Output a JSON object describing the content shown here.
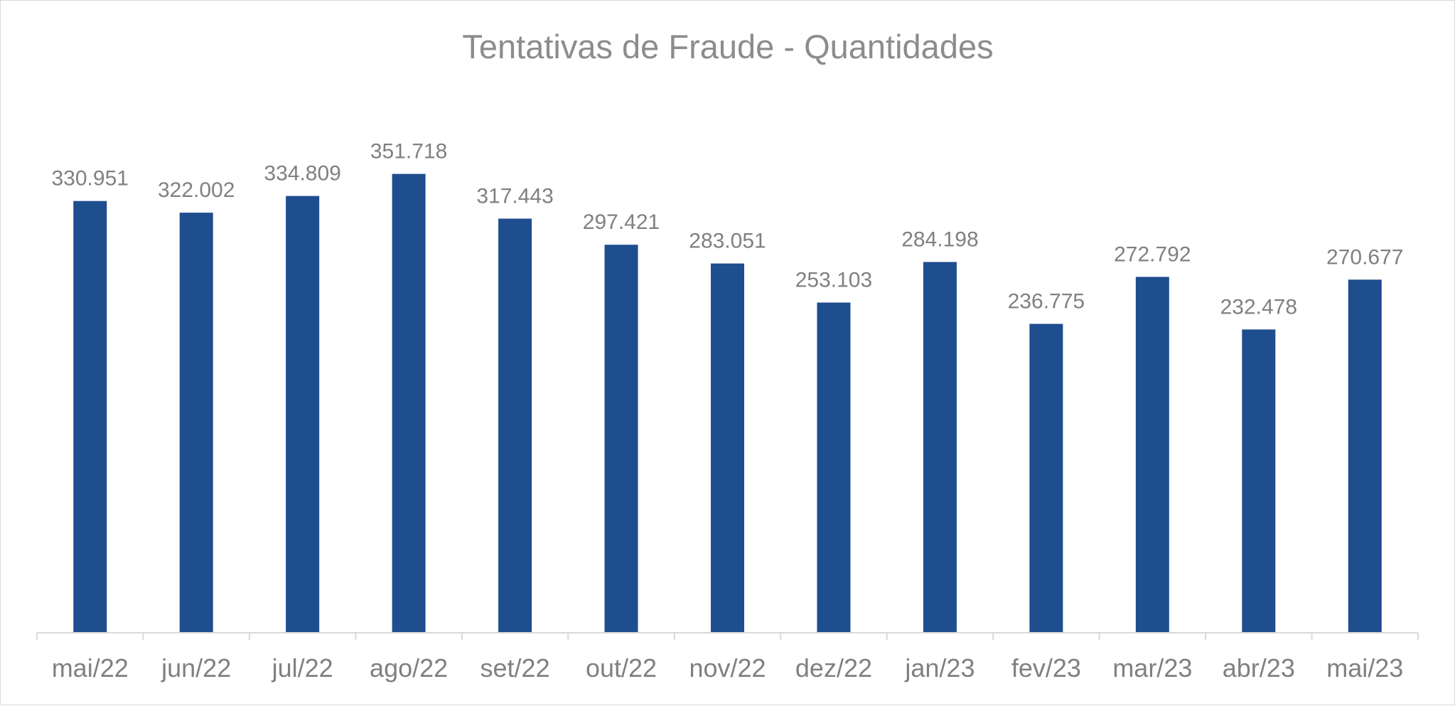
{
  "chart_data": {
    "type": "bar",
    "title": "Tentativas de Fraude - Quantidades",
    "xlabel": "",
    "ylabel": "",
    "categories": [
      "mai/22",
      "jun/22",
      "jul/22",
      "ago/22",
      "set/22",
      "out/22",
      "nov/22",
      "dez/22",
      "jan/23",
      "fev/23",
      "mar/23",
      "abr/23",
      "mai/23"
    ],
    "values": [
      330951,
      322002,
      334809,
      351718,
      317443,
      297421,
      283051,
      253103,
      284198,
      236775,
      272792,
      232478,
      270677
    ],
    "data_labels": [
      "330.951",
      "322.002",
      "334.809",
      "351.718",
      "317.443",
      "297.421",
      "283.051",
      "253.103",
      "284.198",
      "236.775",
      "272.792",
      "232.478",
      "270.677"
    ],
    "ylim": [
      0,
      400000
    ],
    "grid": false,
    "legend": "none",
    "colors": {
      "bar": "#1f4e8f",
      "axis": "#d9d9d9",
      "text": "#808080",
      "title": "#8c8c8c"
    }
  }
}
